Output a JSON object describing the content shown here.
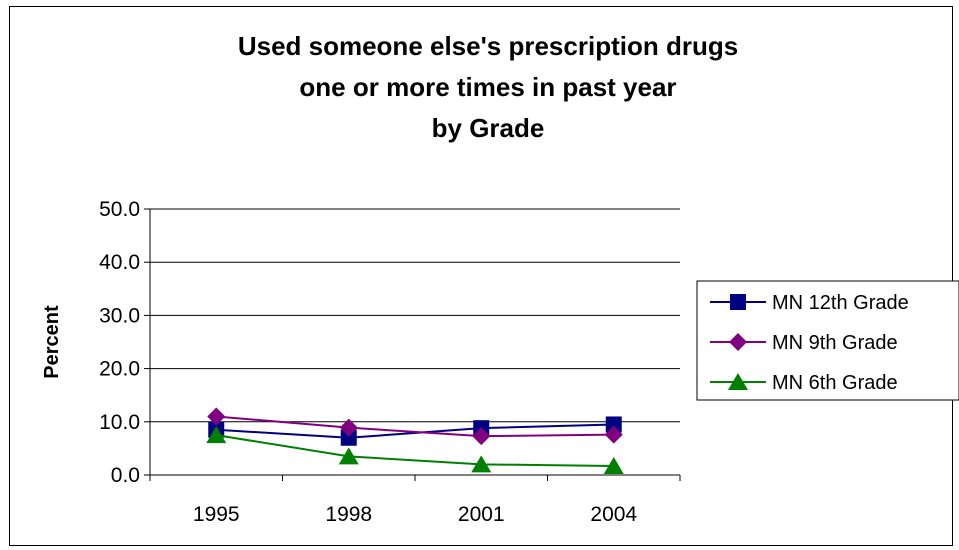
{
  "chart_data": {
    "type": "line",
    "title_lines": [
      "Used someone else's prescription drugs",
      "one or more times in past year",
      "by Grade"
    ],
    "xlabel": "",
    "ylabel": "Percent",
    "categories": [
      "1995",
      "1998",
      "2001",
      "2004"
    ],
    "ylim": [
      0,
      50
    ],
    "yticks": [
      "0.0",
      "10.0",
      "20.0",
      "30.0",
      "40.0",
      "50.0"
    ],
    "grid": true,
    "legend_position": "right",
    "series": [
      {
        "name": "MN 12th Grade",
        "values": [
          8.5,
          7.0,
          8.8,
          9.5
        ],
        "color": "#000080",
        "marker": "square"
      },
      {
        "name": "MN 9th Grade",
        "values": [
          11.0,
          8.9,
          7.3,
          7.6
        ],
        "color": "#800080",
        "marker": "diamond"
      },
      {
        "name": "MN 6th Grade",
        "values": [
          7.5,
          3.5,
          2.0,
          1.7
        ],
        "color": "#008000",
        "marker": "triangle"
      }
    ]
  }
}
